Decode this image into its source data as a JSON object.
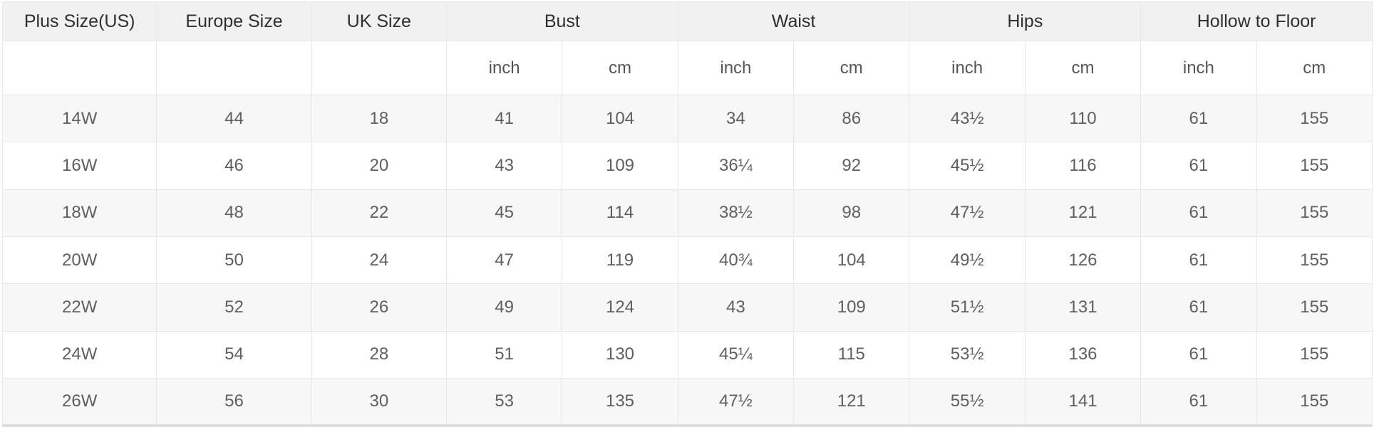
{
  "colors": {
    "header_bg": "#f1f1f1",
    "alt_row_bg": "#f7f7f7",
    "border": "#e7e7e7",
    "header_text": "#2f2f2f",
    "cell_text": "#5f5f5f"
  },
  "chart_data": {
    "type": "table",
    "column_groups": [
      {
        "label": "Plus Size(US)",
        "units": []
      },
      {
        "label": "Europe Size",
        "units": []
      },
      {
        "label": "UK Size",
        "units": []
      },
      {
        "label": "Bust",
        "units": [
          "inch",
          "cm"
        ]
      },
      {
        "label": "Waist",
        "units": [
          "inch",
          "cm"
        ]
      },
      {
        "label": "Hips",
        "units": [
          "inch",
          "cm"
        ]
      },
      {
        "label": "Hollow to Floor",
        "units": [
          "inch",
          "cm"
        ]
      }
    ],
    "unit_row": [
      "",
      "",
      "",
      "inch",
      "cm",
      "inch",
      "cm",
      "inch",
      "cm",
      "inch",
      "cm"
    ],
    "columns": [
      "Plus Size(US)",
      "Europe Size",
      "UK Size",
      "Bust inch",
      "Bust cm",
      "Waist inch",
      "Waist cm",
      "Hips inch",
      "Hips cm",
      "Hollow to Floor inch",
      "Hollow to Floor cm"
    ],
    "rows": [
      [
        "14W",
        "44",
        "18",
        "41",
        "104",
        "34",
        "86",
        "43½",
        "110",
        "61",
        "155"
      ],
      [
        "16W",
        "46",
        "20",
        "43",
        "109",
        "36¼",
        "92",
        "45½",
        "116",
        "61",
        "155"
      ],
      [
        "18W",
        "48",
        "22",
        "45",
        "114",
        "38½",
        "98",
        "47½",
        "121",
        "61",
        "155"
      ],
      [
        "20W",
        "50",
        "24",
        "47",
        "119",
        "40¾",
        "104",
        "49½",
        "126",
        "61",
        "155"
      ],
      [
        "22W",
        "52",
        "26",
        "49",
        "124",
        "43",
        "109",
        "51½",
        "131",
        "61",
        "155"
      ],
      [
        "24W",
        "54",
        "28",
        "51",
        "130",
        "45¼",
        "115",
        "53½",
        "136",
        "61",
        "155"
      ],
      [
        "26W",
        "56",
        "30",
        "53",
        "135",
        "47½",
        "121",
        "55½",
        "141",
        "61",
        "155"
      ]
    ],
    "layout_hints": {
      "grid": true,
      "alternating_rows": true,
      "first_data_row_shaded": true
    }
  }
}
